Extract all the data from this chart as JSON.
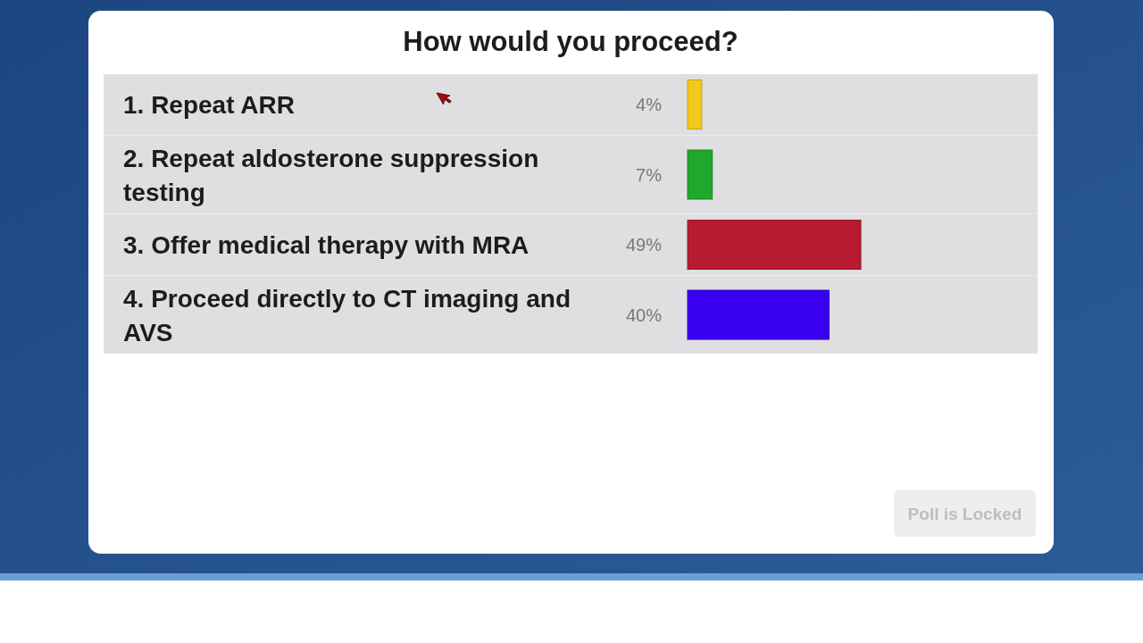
{
  "chart_data": {
    "type": "bar",
    "orientation": "horizontal",
    "title": "How would you proceed?",
    "categories": [
      "1. Repeat ARR",
      "2. Repeat aldosterone suppression testing",
      "3. Offer medical therapy with MRA",
      "4. Proceed directly to CT imaging and AVS"
    ],
    "values": [
      4,
      7,
      49,
      40
    ],
    "colors": [
      "#f4c81c",
      "#1fa82a",
      "#b81a30",
      "#3a00f0"
    ],
    "value_labels": [
      "4%",
      "7%",
      "49%",
      "40%"
    ],
    "annotations": [
      "Poll is Locked"
    ]
  }
}
